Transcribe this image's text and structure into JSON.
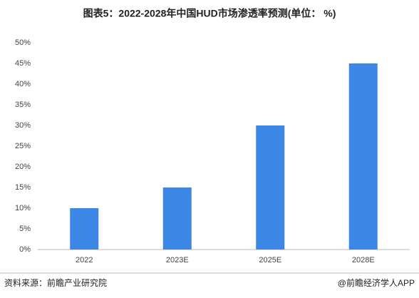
{
  "chart_data": {
    "type": "bar",
    "title": "图表5：2022-2028年中国HUD市场渗透率预测(单位： %)",
    "categories": [
      "2022",
      "2023E",
      "2025E",
      "2028E"
    ],
    "values": [
      10,
      15,
      30,
      45
    ],
    "color": "#3c87e6",
    "ylim": [
      0,
      50
    ],
    "yticks": [
      {
        "value": 0,
        "label": "0%"
      },
      {
        "value": 5,
        "label": "5%"
      },
      {
        "value": 10,
        "label": "10%"
      },
      {
        "value": 15,
        "label": "15%"
      },
      {
        "value": 20,
        "label": "20%"
      },
      {
        "value": 25,
        "label": "25%"
      },
      {
        "value": 30,
        "label": "30%"
      },
      {
        "value": 35,
        "label": "35%"
      },
      {
        "value": 40,
        "label": "40%"
      },
      {
        "value": 45,
        "label": "45%"
      },
      {
        "value": 50,
        "label": "50%"
      }
    ],
    "grid": false,
    "source": "资料来源：前瞻产业研究院",
    "credit": "@前瞻经济学人APP"
  }
}
